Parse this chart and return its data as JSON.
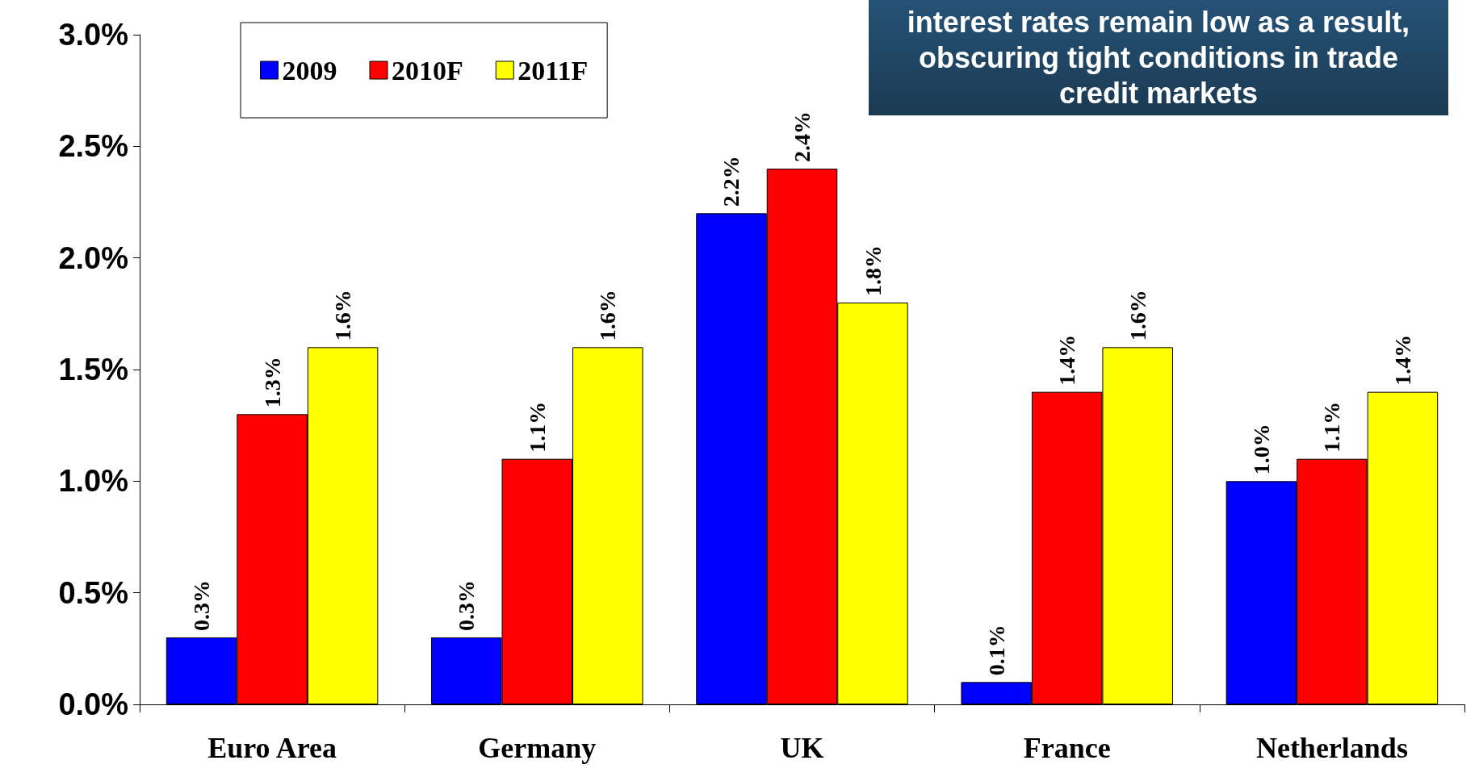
{
  "chart_data": {
    "type": "bar",
    "categories": [
      "Euro Area",
      "Germany",
      "UK",
      "France",
      "Netherlands"
    ],
    "series": [
      {
        "name": "2009",
        "color": "#0000ff",
        "values": [
          0.3,
          0.3,
          2.2,
          0.1,
          1.0
        ],
        "value_labels": [
          "0.3%",
          "0.3%",
          "2.2%",
          "0.1%",
          "1.0%"
        ]
      },
      {
        "name": "2010F",
        "color": "#ff0000",
        "values": [
          1.3,
          1.1,
          2.4,
          1.4,
          1.1
        ],
        "value_labels": [
          "1.3%",
          "1.1%",
          "2.4%",
          "1.4%",
          "1.1%"
        ]
      },
      {
        "name": "2011F",
        "color": "#ffff00",
        "values": [
          1.6,
          1.6,
          1.8,
          1.6,
          1.4
        ],
        "value_labels": [
          "1.6%",
          "1.6%",
          "1.8%",
          "1.6%",
          "1.4%"
        ]
      }
    ],
    "ylim": [
      0,
      3
    ],
    "yticks": [
      {
        "value": 0,
        "label": "0.0%"
      },
      {
        "value": 0.5,
        "label": "0.5%"
      },
      {
        "value": 1,
        "label": "1.0%"
      },
      {
        "value": 1.5,
        "label": "1.5%"
      },
      {
        "value": 2,
        "label": "2.0%"
      },
      {
        "value": 2.5,
        "label": "2.5%"
      },
      {
        "value": 3,
        "label": "3.0%"
      }
    ],
    "grid": false,
    "legend": "top left",
    "annotations": [
      "interest rates remain low as a result, obscuring tight conditions in trade credit markets"
    ]
  }
}
